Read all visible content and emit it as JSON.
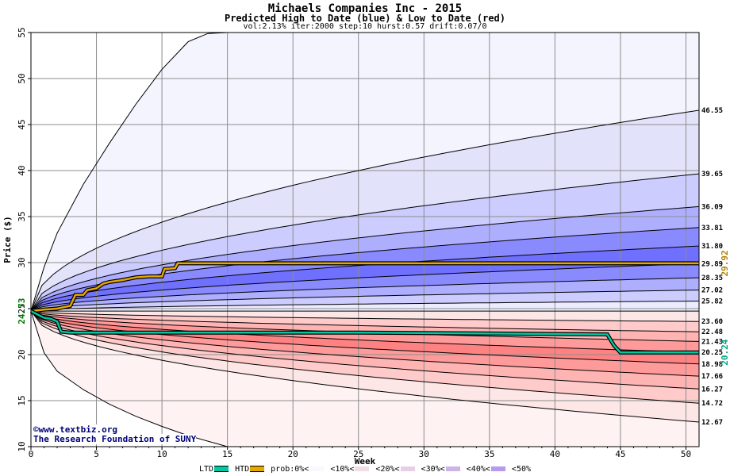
{
  "chart_data": {
    "type": "area",
    "title": "Michaels Companies Inc - 2015",
    "subtitle": "Predicted High to Date (blue) &  Low to Date (red)",
    "params": "vol:2.13% iter:2000 step:10 hurst:0.57 drift:0.07/0",
    "xlabel": "Week",
    "ylabel": "Price ($)",
    "xlim": [
      0,
      51
    ],
    "ylim": [
      10,
      55
    ],
    "xticks": [
      0,
      5,
      10,
      15,
      20,
      25,
      30,
      35,
      40,
      45,
      50
    ],
    "yticks": [
      10,
      15,
      20,
      25,
      30,
      35,
      40,
      45,
      50,
      55
    ],
    "grid": true,
    "start_price": 24.73,
    "start_label": "24.73",
    "hi_bands": [
      {
        "end": 25.82,
        "label": "25.82",
        "color": "#ececff"
      },
      {
        "end": 27.02,
        "label": "27.02",
        "color": "#ccccff"
      },
      {
        "end": 28.35,
        "label": "28.35",
        "color": "#aeaeff"
      },
      {
        "end": 29.89,
        "label": "29.89",
        "color": "#8a8aff"
      },
      {
        "end": 31.8,
        "label": "31.80",
        "color": "#7070ff"
      },
      {
        "end": 33.81,
        "label": "33.81",
        "color": "#8a8aff"
      },
      {
        "end": 36.09,
        "label": "36.09",
        "color": "#aeaeff"
      },
      {
        "end": 39.65,
        "label": "39.65",
        "color": "#ccccff"
      },
      {
        "end": 46.55,
        "label": "46.55",
        "color": "#e2e2fb"
      }
    ],
    "lo_bands": [
      {
        "end": 23.6,
        "label": "23.60",
        "color": "#fde6e6"
      },
      {
        "end": 22.48,
        "label": "22.48",
        "color": "#ffcaca"
      },
      {
        "end": 21.43,
        "label": "21.43",
        "color": "#ffb4b4"
      },
      {
        "end": 20.25,
        "label": "20.25",
        "color": "#ff9a9a"
      },
      {
        "end": 18.98,
        "label": "18.98",
        "color": "#ff8282"
      },
      {
        "end": 17.66,
        "label": "17.66",
        "color": "#ff9a9a"
      },
      {
        "end": 16.27,
        "label": "16.27",
        "color": "#ffb4b4"
      },
      {
        "end": 14.72,
        "label": "14.72",
        "color": "#ffcaca"
      },
      {
        "end": 12.67,
        "label": "12.67",
        "color": "#fde6e6"
      }
    ],
    "outer_hi_color": "#f4f4ff",
    "outer_lo_color": "#fff2f2",
    "outer_hi_line": [
      [
        0,
        24.73
      ],
      [
        1,
        29.5
      ],
      [
        2,
        33.2
      ],
      [
        4,
        38.5
      ],
      [
        6,
        43
      ],
      [
        8,
        47.2
      ],
      [
        10,
        51
      ],
      [
        12,
        54
      ],
      [
        13.5,
        54.9
      ],
      [
        15,
        55
      ]
    ],
    "outer_lo_line": [
      [
        0,
        24.73
      ],
      [
        1,
        20.2
      ],
      [
        2,
        18.2
      ],
      [
        4,
        16.2
      ],
      [
        6,
        14.6
      ],
      [
        8,
        13.3
      ],
      [
        10,
        12.2
      ],
      [
        12,
        11.2
      ],
      [
        14,
        10.4
      ],
      [
        15,
        10
      ]
    ],
    "htd_series": {
      "name": "HTD",
      "color": "#e6a800",
      "points": [
        [
          0,
          24.73
        ],
        [
          1,
          24.9
        ],
        [
          2,
          25.0
        ],
        [
          3,
          25.3
        ],
        [
          3.4,
          26.5
        ],
        [
          4,
          26.5
        ],
        [
          4.3,
          27.0
        ],
        [
          5,
          27.2
        ],
        [
          5.5,
          27.7
        ],
        [
          6,
          27.9
        ],
        [
          7,
          28.1
        ],
        [
          8,
          28.4
        ],
        [
          9,
          28.5
        ],
        [
          10,
          28.5
        ],
        [
          10.2,
          29.3
        ],
        [
          11,
          29.4
        ],
        [
          11.2,
          29.92
        ],
        [
          51,
          29.92
        ]
      ],
      "end_label": "29.92"
    },
    "ltd_series": {
      "name": "LTD",
      "color": "#00c8a0",
      "points": [
        [
          0,
          24.73
        ],
        [
          1,
          24.0
        ],
        [
          1.5,
          23.9
        ],
        [
          2,
          23.6
        ],
        [
          2.3,
          22.5
        ],
        [
          3,
          22.4
        ],
        [
          10,
          22.4
        ],
        [
          25,
          22.4
        ],
        [
          44,
          22.2
        ],
        [
          44.5,
          21.0
        ],
        [
          45,
          20.24
        ],
        [
          51,
          20.24
        ]
      ],
      "end_label": "20.24"
    },
    "legend": {
      "ltd": "LTD",
      "htd": "HTD",
      "prob": "prob:0%<",
      "p10": "<10%<",
      "p20": "<20%<",
      "p30": "<30%<",
      "p40": "<40%<",
      "p50": "<50%",
      "ltd_color": "#00c8a0",
      "htd_color": "#e6a800",
      "p0_color": "#f8f8ff",
      "p10_color": "#f2dde6",
      "p20_color": "#e6cfe6",
      "p30_color": "#ccb3ea",
      "p40_color": "#b59aee",
      "p50_color": "#8a78f0"
    }
  },
  "credit": {
    "line1": "©www.textbiz.org",
    "line2": "The Research Foundation of SUNY"
  }
}
